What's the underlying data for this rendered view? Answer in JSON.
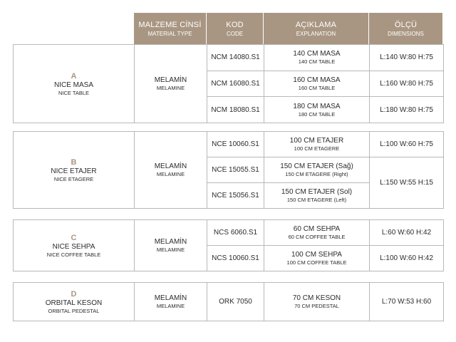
{
  "header": {
    "columns": [
      {
        "title": "MALZEME CİNSİ",
        "subtitle": "MATERIAL TYPE"
      },
      {
        "title": "KOD",
        "subtitle": "CODE"
      },
      {
        "title": "AÇIKLAMA",
        "subtitle": "EXPLANATION"
      },
      {
        "title": "ÖLÇÜ",
        "subtitle": "DIMENSIONS"
      }
    ]
  },
  "groups": [
    {
      "letter": "A",
      "name": "NICE MASA",
      "subtitle": "NICE TABLE",
      "material": {
        "title": "MELAMİN",
        "subtitle": "MELAMINE"
      },
      "rows": [
        {
          "code": "NCM 14080.S1",
          "description": {
            "title": "140 CM MASA",
            "subtitle": "140 CM TABLE"
          },
          "dimensions": "L:140 W:80 H:75"
        },
        {
          "code": "NCM 16080.S1",
          "description": {
            "title": "160 CM MASA",
            "subtitle": "160 CM TABLE"
          },
          "dimensions": "L:160 W:80 H:75"
        },
        {
          "code": "NCM 18080.S1",
          "description": {
            "title": "180 CM MASA",
            "subtitle": "180 CM TABLE"
          },
          "dimensions": "L:180 W:80 H:75"
        }
      ]
    },
    {
      "letter": "B",
      "name": "NICE ETAJER",
      "subtitle": "NICE ETAGERE",
      "material": {
        "title": "MELAMİN",
        "subtitle": "MELAMINE"
      },
      "rows": [
        {
          "code": "NCE 10060.S1",
          "description": {
            "title": "100 CM ETAJER",
            "subtitle": "100 CM ETAGERE"
          },
          "dimensions": "L:100 W:60 H:75"
        },
        {
          "code": "NCE 15055.S1",
          "description": {
            "title": "150 CM ETAJER (Sağ)",
            "subtitle": "150 CM ETAGERE (Right)"
          },
          "dimensions": "L:150 W:55 H:15"
        },
        {
          "code": "NCE 15056.S1",
          "description": {
            "title": "150 CM ETAJER (Sol)",
            "subtitle": "150 CM ETAGERE (Left)"
          }
        }
      ]
    },
    {
      "letter": "C",
      "name": "NICE SEHPA",
      "subtitle": "NICE COFFEE TABLE",
      "material": {
        "title": "MELAMİN",
        "subtitle": "MELAMINE"
      },
      "rows": [
        {
          "code": "NCS 6060.S1",
          "description": {
            "title": "60 CM SEHPA",
            "subtitle": "60 CM COFFEE TABLE"
          },
          "dimensions": "L:60 W:60 H:42"
        },
        {
          "code": "NCS 10060.S1",
          "description": {
            "title": "100 CM SEHPA",
            "subtitle": "100 CM COFFEE TABLE"
          },
          "dimensions": "L:100 W:60 H:42"
        }
      ]
    },
    {
      "letter": "D",
      "name": "ORBITAL KESON",
      "subtitle": "ORBITAL PEDESTAL",
      "material": {
        "title": "MELAMİN",
        "subtitle": "MELAMINE"
      },
      "rows": [
        {
          "code": "ORK 7050",
          "description": {
            "title": "70 CM KESON",
            "subtitle": "70 CM PEDESTAL"
          },
          "dimensions": "L:70 W:53 H:60"
        }
      ]
    }
  ]
}
